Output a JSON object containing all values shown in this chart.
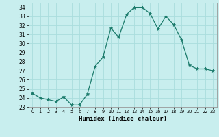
{
  "x": [
    0,
    1,
    2,
    3,
    4,
    5,
    6,
    7,
    8,
    9,
    10,
    11,
    12,
    13,
    14,
    15,
    16,
    17,
    18,
    19,
    20,
    21,
    22,
    23
  ],
  "y": [
    24.5,
    24.0,
    23.8,
    23.6,
    24.1,
    23.2,
    23.2,
    24.4,
    27.5,
    28.5,
    31.7,
    30.7,
    33.2,
    34.0,
    34.0,
    33.3,
    31.6,
    33.0,
    32.1,
    30.4,
    27.6,
    27.2,
    27.2,
    27.0
  ],
  "line_color": "#1a7a6a",
  "marker": "*",
  "marker_size": 3.5,
  "bg_color": "#c8eeee",
  "grid_color": "#aadddd",
  "xlabel": "Humidex (Indice chaleur)",
  "ylim": [
    23,
    34.5
  ],
  "xlim": [
    -0.5,
    23.5
  ],
  "yticks": [
    23,
    24,
    25,
    26,
    27,
    28,
    29,
    30,
    31,
    32,
    33,
    34
  ],
  "xticks": [
    0,
    1,
    2,
    3,
    4,
    5,
    6,
    7,
    8,
    9,
    10,
    11,
    12,
    13,
    14,
    15,
    16,
    17,
    18,
    19,
    20,
    21,
    22,
    23
  ]
}
